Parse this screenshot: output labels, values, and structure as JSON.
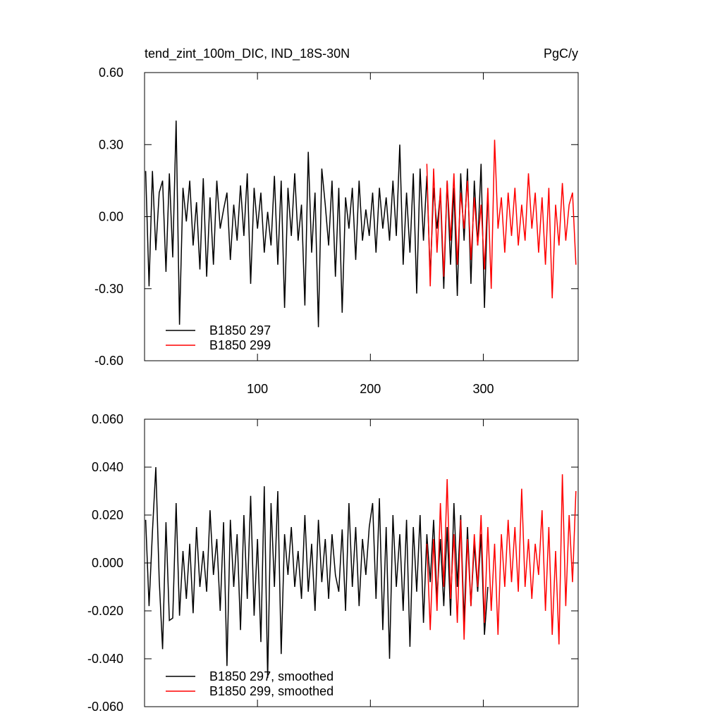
{
  "chart_data": [
    {
      "type": "line",
      "title": "tend_zint_100m_DIC, IND_18S-30N",
      "units": "PgC/y",
      "xlim": [
        0,
        384
      ],
      "xticks": [
        100,
        200,
        300
      ],
      "ylim": [
        -0.6,
        0.6
      ],
      "yticks": [
        {
          "value": -0.6,
          "label": "-0.60"
        },
        {
          "value": -0.3,
          "label": "-0.30"
        },
        {
          "value": 0,
          "label": "0.00"
        },
        {
          "value": 0.3,
          "label": "0.30"
        },
        {
          "value": 0.6,
          "label": "0.60"
        }
      ],
      "series": [
        {
          "name": "B1850 297",
          "color": "#000000",
          "x": [
            1,
            4,
            7,
            10,
            13,
            16,
            19,
            22,
            25,
            28,
            31,
            34,
            37,
            40,
            43,
            46,
            49,
            52,
            55,
            58,
            61,
            64,
            67,
            70,
            73,
            76,
            79,
            82,
            85,
            88,
            91,
            94,
            97,
            100,
            103,
            106,
            109,
            112,
            115,
            118,
            121,
            124,
            127,
            130,
            133,
            136,
            139,
            142,
            145,
            148,
            151,
            154,
            157,
            160,
            163,
            166,
            169,
            172,
            175,
            178,
            181,
            184,
            187,
            190,
            193,
            196,
            199,
            202,
            205,
            208,
            211,
            214,
            217,
            220,
            223,
            226,
            229,
            232,
            235,
            238,
            241,
            244,
            247,
            250,
            253,
            256,
            259,
            262,
            265,
            268,
            271,
            274,
            277,
            280,
            283,
            286,
            289,
            292,
            295,
            298,
            301,
            304
          ],
          "values": [
            0.19,
            -0.29,
            0.19,
            -0.14,
            0.1,
            0.15,
            -0.23,
            0.18,
            -0.17,
            0.4,
            -0.45,
            0.12,
            -0.02,
            0.15,
            -0.12,
            0.06,
            -0.22,
            0.16,
            -0.25,
            0.08,
            -0.2,
            0.15,
            -0.05,
            0.03,
            0.1,
            -0.18,
            0.05,
            -0.1,
            0.13,
            -0.08,
            0.18,
            -0.28,
            0.12,
            -0.05,
            0.1,
            -0.15,
            0.02,
            -0.12,
            0.17,
            -0.2,
            0.15,
            -0.38,
            0.12,
            -0.08,
            0.18,
            -0.1,
            0.05,
            -0.37,
            0.27,
            -0.15,
            0.1,
            -0.46,
            0.2,
            0.05,
            -0.12,
            0.15,
            -0.25,
            0.12,
            -0.4,
            0.08,
            -0.05,
            0.12,
            -0.18,
            0.15,
            -0.1,
            0.03,
            -0.08,
            0.1,
            -0.15,
            0.12,
            -0.05,
            0.08,
            -0.1,
            0.15,
            -0.08,
            0.3,
            -0.2,
            0.1,
            -0.15,
            0.18,
            -0.32,
            0.2,
            -0.1,
            0.17,
            -0.25,
            0.12,
            -0.05,
            0.1,
            -0.3,
            0.15,
            -0.2,
            0.12,
            -0.33,
            0.18,
            -0.1,
            0.2,
            -0.28,
            0.15,
            -0.12,
            0.22,
            -0.38,
            0.1
          ]
        },
        {
          "name": "B1850 299",
          "color": "#ff0000",
          "x": [
            250,
            253,
            256,
            259,
            262,
            265,
            268,
            271,
            274,
            277,
            280,
            283,
            286,
            289,
            292,
            295,
            298,
            301,
            304,
            307,
            310,
            313,
            316,
            319,
            322,
            325,
            328,
            331,
            334,
            337,
            340,
            343,
            346,
            349,
            352,
            355,
            358,
            361,
            364,
            367,
            370,
            373,
            376,
            379,
            382
          ],
          "values": [
            0.22,
            -0.29,
            0.2,
            -0.15,
            0.12,
            -0.25,
            0.15,
            -0.1,
            0.18,
            -0.2,
            0.1,
            -0.05,
            0.15,
            -0.18,
            0.08,
            -0.12,
            0.05,
            -0.22,
            0.12,
            -0.3,
            0.32,
            -0.05,
            0.08,
            -0.15,
            0.1,
            -0.08,
            0.12,
            -0.12,
            0.05,
            -0.1,
            0.18,
            -0.05,
            0.1,
            -0.15,
            0.08,
            -0.2,
            0.12,
            -0.34,
            0.05,
            -0.12,
            0.14,
            -0.1,
            0.05,
            0.1,
            -0.2
          ]
        }
      ]
    },
    {
      "type": "line",
      "xlim": [
        0,
        384
      ],
      "ylim": [
        -0.06,
        0.06
      ],
      "yticks": [
        {
          "value": -0.06,
          "label": "-0.060"
        },
        {
          "value": -0.04,
          "label": "-0.040"
        },
        {
          "value": -0.02,
          "label": "-0.020"
        },
        {
          "value": 0,
          "label": "0.000"
        },
        {
          "value": 0.02,
          "label": "0.020"
        },
        {
          "value": 0.04,
          "label": "0.040"
        },
        {
          "value": 0.06,
          "label": "0.060"
        }
      ],
      "series": [
        {
          "name": "B1850 297, smoothed",
          "color": "#000000",
          "x": [
            1,
            4,
            7,
            10,
            13,
            16,
            19,
            22,
            25,
            28,
            31,
            34,
            37,
            40,
            43,
            46,
            49,
            52,
            55,
            58,
            61,
            64,
            67,
            70,
            73,
            76,
            79,
            82,
            85,
            88,
            91,
            94,
            97,
            100,
            103,
            106,
            109,
            112,
            115,
            118,
            121,
            124,
            127,
            130,
            133,
            136,
            139,
            142,
            145,
            148,
            151,
            154,
            157,
            160,
            163,
            166,
            169,
            172,
            175,
            178,
            181,
            184,
            187,
            190,
            193,
            196,
            199,
            202,
            205,
            208,
            211,
            214,
            217,
            220,
            223,
            226,
            229,
            232,
            235,
            238,
            241,
            244,
            247,
            250,
            253,
            256,
            259,
            262,
            265,
            268,
            271,
            274,
            277,
            280,
            283,
            286,
            289,
            292,
            295,
            298,
            301,
            304
          ],
          "values": [
            0.018,
            -0.018,
            0.013,
            0.04,
            -0.007,
            -0.036,
            0.017,
            -0.024,
            -0.023,
            0.025,
            -0.022,
            0.005,
            -0.015,
            0.008,
            -0.021,
            0.015,
            -0.01,
            0.005,
            -0.012,
            0.022,
            -0.005,
            0.01,
            -0.02,
            0.017,
            -0.043,
            0.018,
            -0.01,
            0.012,
            -0.028,
            0.02,
            -0.015,
            0.028,
            -0.022,
            0.01,
            -0.033,
            0.032,
            -0.048,
            0.025,
            -0.01,
            0.03,
            -0.038,
            0.012,
            -0.005,
            0.015,
            -0.01,
            0.005,
            -0.015,
            0.02,
            -0.012,
            0.008,
            -0.02,
            0.018,
            -0.008,
            0.01,
            -0.015,
            0.012,
            -0.005,
            -0.012,
            0.014,
            -0.02,
            0.025,
            -0.01,
            0.015,
            -0.018,
            0.01,
            -0.005,
            0.015,
            0.025,
            -0.015,
            0.027,
            -0.028,
            0.015,
            -0.04,
            0.02,
            -0.01,
            0.012,
            -0.02,
            0.018,
            -0.035,
            0.015,
            -0.012,
            0.02,
            -0.025,
            0.012,
            -0.008,
            0.018,
            -0.015,
            0.01,
            -0.018,
            0.015,
            -0.022,
            0.025,
            -0.01,
            0.02,
            -0.025,
            0.015,
            -0.018,
            0.008,
            -0.012,
            0.012,
            -0.03,
            -0.01
          ]
        },
        {
          "name": "B1850 299, smoothed",
          "color": "#ff0000",
          "x": [
            250,
            253,
            256,
            259,
            262,
            265,
            268,
            271,
            274,
            277,
            280,
            283,
            286,
            289,
            292,
            295,
            298,
            301,
            304,
            307,
            310,
            313,
            316,
            319,
            322,
            325,
            328,
            331,
            334,
            337,
            340,
            343,
            346,
            349,
            352,
            355,
            358,
            361,
            364,
            367,
            370,
            373,
            376,
            379,
            382
          ],
          "values": [
            0.008,
            -0.028,
            0.01,
            -0.02,
            0.025,
            -0.01,
            0.035,
            -0.015,
            0.012,
            -0.025,
            0.018,
            -0.032,
            0.01,
            -0.018,
            0.012,
            -0.01,
            0.02,
            -0.025,
            0.015,
            -0.02,
            0.008,
            -0.03,
            0.012,
            -0.01,
            0.018,
            -0.008,
            0.015,
            -0.012,
            0.031,
            -0.01,
            0.01,
            -0.015,
            0.008,
            -0.005,
            0.022,
            -0.02,
            0.015,
            -0.03,
            0.005,
            -0.034,
            0.037,
            -0.018,
            0.02,
            -0.008,
            0.03
          ]
        }
      ]
    }
  ]
}
